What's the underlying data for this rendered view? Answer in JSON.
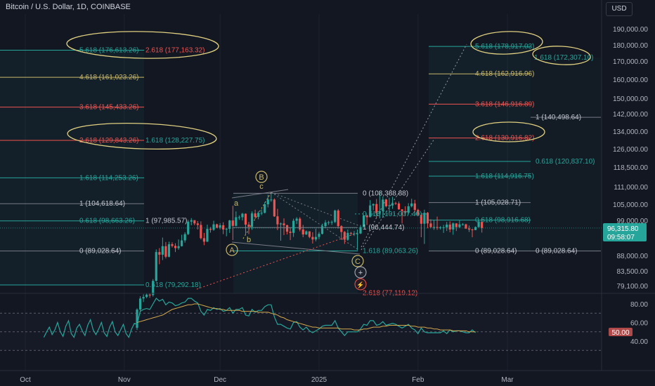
{
  "header": {
    "title": "Bitcoin / U.S. Dollar, 1D, COINBASE",
    "currency": "USD"
  },
  "price_axis": [
    "190,000.00",
    "180,000.00",
    "170,000.00",
    "160,000.00",
    "150,000.00",
    "142,000.00",
    "134,000.00",
    "126,000.00",
    "118,500.00",
    "111,000.00",
    "105,000.00",
    "99,000.00",
    "88,000.00",
    "83,500.00",
    "79,100.00"
  ],
  "rsi_axis": [
    "80.00",
    "60.00",
    "40.00"
  ],
  "price_badge": {
    "price": "96,315.80",
    "countdown": "09:58:07"
  },
  "rsi_badge": "50.00",
  "time_axis": [
    "Oct",
    "Nov",
    "Dec",
    "2025",
    "Feb",
    "Mar"
  ],
  "left_fib": [
    "5.618 (176,613.26)",
    "2.618 (177,163.32)",
    "4.618 (161,023.26)",
    "3.618 (145,433.26)",
    "2.618 (129,843.26)",
    "1.618 (128,227.75)",
    "1.618 (114,253.26)",
    "1 (104,618.64)",
    "0.618 (98,663.26)",
    "1 (97,985.57)",
    "0 (89,028.64)",
    "0.618 (79,292.18)"
  ],
  "mid_fib": [
    "0 (108,388.88)",
    "0.618 (101,007.40)",
    "1 (96,444.74)",
    "1.618 (89,063.26)",
    "2.618 (77,119.12)"
  ],
  "right_fib": [
    "5.618 (178,917.03)",
    "1.618 (172,307.10)",
    "4.618 (162,916.96)",
    "3.618 (146,916.89)",
    "1 (140,498.64)",
    "2.618 (130,916.82)",
    "0.618 (120,837.10)",
    "1.618 (114,916.75)",
    "1 (105,028.71)",
    "0.618 (98,916.68)",
    "0 (89,028.64)",
    "0 (89,028.64)"
  ],
  "waves": {
    "major": [
      "A",
      "B",
      "C"
    ],
    "minor": [
      "a",
      "b",
      "c"
    ]
  },
  "colors": {
    "bg": "#131722",
    "up": "#26a69a",
    "down": "#ef5350",
    "ellipse": "#e0d080",
    "rsi": "#26a69a",
    "rsi_ma": "#d4a94c",
    "fib_teal": "#26a69a",
    "fib_red": "#ef5350",
    "fib_gold": "#c8b86a",
    "fib_gray": "#b2b5be"
  },
  "chart_data": {
    "type": "candlestick",
    "symbol": "Bitcoin / U.S. Dollar",
    "timeframe": "1D",
    "exchange": "COINBASE",
    "y_unit": "USD",
    "ylim": [
      75000,
      195000
    ],
    "yscale": "log",
    "x_range": [
      "2024-10-01",
      "2025-03-10"
    ],
    "candles": [
      [
        "2024-11-05",
        68500,
        73200,
        68000,
        72900
      ],
      [
        "2024-11-06",
        72900,
        76300,
        72400,
        75700
      ],
      [
        "2024-11-07",
        75700,
        76800,
        74800,
        76100
      ],
      [
        "2024-11-08",
        76100,
        77100,
        75800,
        76700
      ],
      [
        "2024-11-09",
        76700,
        77000,
        75900,
        76600
      ],
      [
        "2024-11-10",
        76600,
        80900,
        76200,
        80400
      ],
      [
        "2024-11-11",
        80400,
        89500,
        80200,
        88700
      ],
      [
        "2024-11-12",
        88700,
        89900,
        85100,
        87900
      ],
      [
        "2024-11-13",
        87900,
        93200,
        86300,
        90500
      ],
      [
        "2024-11-14",
        90500,
        91800,
        86800,
        87300
      ],
      [
        "2024-11-15",
        87300,
        91900,
        87100,
        91100
      ],
      [
        "2024-11-16",
        91100,
        91700,
        90100,
        90600
      ],
      [
        "2024-11-17",
        90600,
        91400,
        88700,
        89900
      ],
      [
        "2024-11-18",
        89900,
        92600,
        89400,
        90500
      ],
      [
        "2024-11-19",
        90500,
        94100,
        90400,
        92300
      ],
      [
        "2024-11-20",
        92300,
        94900,
        91600,
        94300
      ],
      [
        "2024-11-21",
        94300,
        99000,
        94000,
        98400
      ],
      [
        "2024-11-22",
        98400,
        99600,
        97200,
        98900
      ],
      [
        "2024-11-23",
        98900,
        98900,
        97200,
        97800
      ],
      [
        "2024-11-24",
        97800,
        98600,
        95800,
        97300
      ],
      [
        "2024-11-25",
        97300,
        98500,
        92600,
        93000
      ],
      [
        "2024-11-26",
        93000,
        94700,
        90800,
        91900
      ],
      [
        "2024-11-27",
        91900,
        97400,
        91800,
        96000
      ],
      [
        "2024-11-28",
        96000,
        96600,
        94800,
        95700
      ],
      [
        "2024-11-29",
        95700,
        98700,
        95400,
        97500
      ],
      [
        "2024-11-30",
        97500,
        97700,
        96200,
        96400
      ],
      [
        "2024-12-01",
        96400,
        97900,
        95800,
        97200
      ],
      [
        "2024-12-02",
        97200,
        98200,
        94300,
        95800
      ],
      [
        "2024-12-03",
        95800,
        96300,
        93600,
        96000
      ],
      [
        "2024-12-04",
        96000,
        99000,
        94700,
        98800
      ],
      [
        "2024-12-05",
        98800,
        103900,
        92400,
        97000
      ],
      [
        "2024-12-06",
        97000,
        101900,
        96800,
        99900
      ],
      [
        "2024-12-07",
        99900,
        100500,
        99000,
        99900
      ],
      [
        "2024-12-08",
        99900,
        101400,
        98800,
        101100
      ],
      [
        "2024-12-09",
        101100,
        101200,
        94100,
        97400
      ],
      [
        "2024-12-10",
        97400,
        98300,
        94300,
        96700
      ],
      [
        "2024-12-11",
        96700,
        101900,
        95700,
        101200
      ],
      [
        "2024-12-12",
        101200,
        102500,
        99300,
        100000
      ],
      [
        "2024-12-13",
        100000,
        102000,
        99200,
        101400
      ],
      [
        "2024-12-14",
        101400,
        102600,
        100600,
        101400
      ],
      [
        "2024-12-15",
        101400,
        105100,
        101200,
        104400
      ],
      [
        "2024-12-16",
        104400,
        107800,
        103300,
        106100
      ],
      [
        "2024-12-17",
        106100,
        108300,
        105300,
        106100
      ],
      [
        "2024-12-18",
        106100,
        106500,
        100000,
        100200
      ],
      [
        "2024-12-19",
        100200,
        102800,
        95600,
        97500
      ],
      [
        "2024-12-20",
        97500,
        98100,
        92200,
        97800
      ],
      [
        "2024-12-21",
        97800,
        99500,
        94000,
        97200
      ],
      [
        "2024-12-22",
        97200,
        97400,
        94200,
        95100
      ],
      [
        "2024-12-23",
        95100,
        96400,
        92400,
        94700
      ],
      [
        "2024-12-24",
        94700,
        99400,
        93400,
        98700
      ],
      [
        "2024-12-25",
        98700,
        99900,
        97600,
        99400
      ],
      [
        "2024-12-26",
        99400,
        99900,
        95200,
        95800
      ],
      [
        "2024-12-27",
        95800,
        97300,
        93300,
        94200
      ],
      [
        "2024-12-28",
        94200,
        95500,
        94000,
        95200
      ],
      [
        "2024-12-29",
        95200,
        95200,
        93000,
        93400
      ],
      [
        "2024-12-30",
        93400,
        94900,
        91300,
        92600
      ],
      [
        "2024-12-31",
        92600,
        96100,
        92000,
        93400
      ],
      [
        "2025-01-01",
        93400,
        95000,
        92700,
        94400
      ],
      [
        "2025-01-02",
        94400,
        97700,
        94200,
        96900
      ],
      [
        "2025-01-03",
        96900,
        98900,
        96200,
        98100
      ],
      [
        "2025-01-04",
        98100,
        98700,
        97300,
        98200
      ],
      [
        "2025-01-05",
        98200,
        98800,
        97300,
        98300
      ],
      [
        "2025-01-06",
        98300,
        102500,
        97900,
        102200
      ],
      [
        "2025-01-07",
        102200,
        102700,
        96100,
        96900
      ],
      [
        "2025-01-08",
        96900,
        97200,
        92500,
        95000
      ],
      [
        "2025-01-09",
        95000,
        95300,
        91200,
        92500
      ],
      [
        "2025-01-10",
        92500,
        95800,
        92200,
        94700
      ],
      [
        "2025-01-11",
        94700,
        95000,
        93800,
        94500
      ],
      [
        "2025-01-12",
        94500,
        95300,
        93700,
        94500
      ],
      [
        "2025-01-13",
        94500,
        95800,
        89300,
        94500
      ],
      [
        "2025-01-14",
        94500,
        97300,
        94300,
        96600
      ],
      [
        "2025-01-15",
        96600,
        100700,
        96500,
        100500
      ],
      [
        "2025-01-16",
        100500,
        100800,
        97300,
        99900
      ],
      [
        "2025-01-17",
        99900,
        105900,
        99900,
        104000
      ],
      [
        "2025-01-18",
        104000,
        104700,
        102300,
        104500
      ],
      [
        "2025-01-19",
        104500,
        106300,
        99600,
        101300
      ],
      [
        "2025-01-20",
        101300,
        109300,
        99500,
        102000
      ],
      [
        "2025-01-21",
        102000,
        107200,
        100100,
        106100
      ],
      [
        "2025-01-22",
        106100,
        106400,
        103300,
        103700
      ],
      [
        "2025-01-23",
        103700,
        106800,
        101300,
        104000
      ],
      [
        "2025-01-24",
        104000,
        107100,
        102800,
        104800
      ],
      [
        "2025-01-25",
        104800,
        105300,
        104200,
        104700
      ],
      [
        "2025-01-26",
        104700,
        105400,
        102500,
        102600
      ],
      [
        "2025-01-27",
        102600,
        102700,
        97800,
        102000
      ],
      [
        "2025-01-28",
        102000,
        103700,
        100300,
        101400
      ],
      [
        "2025-01-29",
        101400,
        104800,
        101300,
        103700
      ],
      [
        "2025-01-30",
        103700,
        106400,
        103300,
        104700
      ],
      [
        "2025-01-31",
        104700,
        106000,
        101500,
        102400
      ],
      [
        "2025-02-01",
        102400,
        102800,
        100300,
        100700
      ],
      [
        "2025-02-02",
        100700,
        101400,
        93300,
        97700
      ],
      [
        "2025-02-03",
        97700,
        102500,
        91200,
        101400
      ],
      [
        "2025-02-04",
        101400,
        101700,
        96200,
        97800
      ],
      [
        "2025-02-05",
        97800,
        99200,
        96200,
        96600
      ],
      [
        "2025-02-06",
        96600,
        99000,
        95700,
        96600
      ],
      [
        "2025-02-07",
        96600,
        100100,
        95700,
        96500
      ],
      [
        "2025-02-08",
        96500,
        96900,
        95800,
        96500
      ],
      [
        "2025-02-09",
        96500,
        97300,
        94700,
        96500
      ],
      [
        "2025-02-10",
        96500,
        98300,
        95300,
        97400
      ],
      [
        "2025-02-11",
        97400,
        98500,
        94900,
        95800
      ],
      [
        "2025-02-12",
        95800,
        98100,
        94100,
        97800
      ],
      [
        "2025-02-13",
        97800,
        97900,
        95300,
        96600
      ],
      [
        "2025-02-14",
        96600,
        98800,
        96300,
        97500
      ],
      [
        "2025-02-15",
        97500,
        97900,
        97100,
        97500
      ],
      [
        "2025-02-16",
        97500,
        97700,
        96000,
        96100
      ],
      [
        "2025-02-17",
        96100,
        97100,
        95000,
        95800
      ],
      [
        "2025-02-18",
        95800,
        96000,
        93300,
        95600
      ],
      [
        "2025-02-19",
        95600,
        96800,
        95600,
        96600
      ],
      [
        "2025-02-20",
        96600,
        98800,
        96400,
        98300
      ],
      [
        "2025-02-21",
        98300,
        99500,
        94800,
        96300
      ]
    ],
    "rsi": {
      "name": "RSI",
      "ylim": [
        20,
        90
      ],
      "levels": [
        70,
        50,
        30
      ],
      "values": [
        58,
        72,
        74,
        75,
        74,
        80,
        86,
        83,
        85,
        79,
        82,
        81,
        78,
        79,
        81,
        82,
        86,
        86,
        83,
        81,
        72,
        68,
        74,
        73,
        76,
        74,
        75,
        72,
        73,
        76,
        70,
        74,
        74,
        76,
        68,
        67,
        74,
        71,
        73,
        73,
        77,
        79,
        79,
        66,
        58,
        58,
        56,
        54,
        53,
        60,
        61,
        55,
        52,
        55,
        51,
        49,
        51,
        53,
        56,
        57,
        57,
        57,
        62,
        54,
        50,
        46,
        50,
        50,
        50,
        50,
        53,
        58,
        57,
        62,
        62,
        57,
        58,
        61,
        57,
        58,
        59,
        58,
        56,
        54,
        56,
        58,
        54,
        52,
        48,
        54,
        50,
        49,
        49,
        49,
        49,
        49,
        51,
        48,
        52,
        50,
        51,
        51,
        50,
        49,
        49,
        52,
        49
      ],
      "ma": [
        60,
        61,
        62,
        63,
        64,
        65,
        66,
        67,
        68,
        70,
        72,
        74,
        75,
        76,
        77,
        78,
        79,
        79,
        80,
        80,
        79,
        78,
        77,
        76,
        75,
        75,
        74,
        74,
        73,
        73,
        73,
        73,
        73,
        72,
        72,
        72,
        72,
        72,
        71,
        71,
        71,
        71,
        70,
        69,
        68,
        66,
        65,
        63,
        62,
        61,
        60,
        59,
        58,
        57,
        56,
        55,
        55,
        54,
        54,
        54,
        54,
        54,
        54,
        54,
        53,
        53,
        53,
        53,
        52,
        52,
        52,
        53,
        53,
        54,
        55,
        55,
        55,
        56,
        56,
        57,
        57,
        57,
        57,
        57,
        57,
        57,
        56,
        56,
        55,
        55,
        55,
        54,
        54,
        53,
        53,
        52,
        52,
        52,
        52,
        51,
        51,
        51,
        51,
        51,
        50,
        50,
        50
      ]
    }
  }
}
